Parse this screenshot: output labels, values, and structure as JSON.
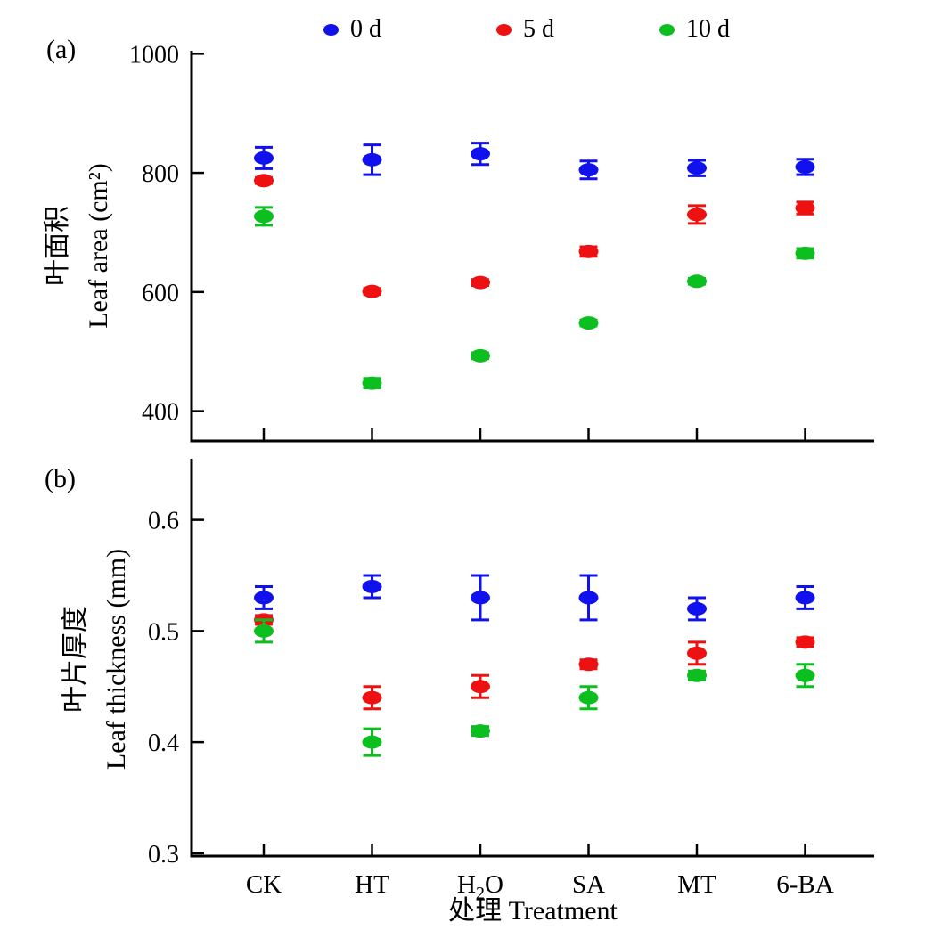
{
  "figure": {
    "legend": [
      {
        "label": "0 d",
        "color": "#1111ee"
      },
      {
        "label": "5 d",
        "color": "#ee1111"
      },
      {
        "label": "10 d",
        "color": "#0bbf1e"
      }
    ],
    "axis_color": "#000000"
  },
  "chart_data": [
    {
      "type": "scatter",
      "panel": "a",
      "panel_label": "(a)",
      "ylabel_zh": "叶面积",
      "ylabel_en": "Leaf area (cm²)",
      "categories": [
        "CK",
        "HT",
        "H₂O",
        "SA",
        "MT",
        "6-BA"
      ],
      "ylim": [
        350,
        1005
      ],
      "yticks": [
        400,
        600,
        800,
        1000
      ],
      "ytick_decimals": 0,
      "grid": false,
      "legend_position": "top",
      "series": [
        {
          "name": "0 d",
          "color": "#1111ee",
          "values": [
            825,
            822,
            832,
            805,
            808,
            810
          ],
          "errors": [
            18,
            25,
            18,
            15,
            13,
            13
          ]
        },
        {
          "name": "5 d",
          "color": "#ee1111",
          "values": [
            787,
            601,
            616,
            668,
            730,
            741
          ],
          "errors": [
            5,
            5,
            5,
            8,
            15,
            10
          ]
        },
        {
          "name": "10 d",
          "color": "#0bbf1e",
          "values": [
            727,
            447,
            493,
            548,
            618,
            665
          ],
          "errors": [
            15,
            8,
            5,
            5,
            5,
            8
          ]
        }
      ]
    },
    {
      "type": "scatter",
      "panel": "b",
      "panel_label": "(b)",
      "ylabel_zh": "叶片厚度",
      "ylabel_en": "Leaf thickness (mm)",
      "xlabel": "处理 Treatment",
      "categories": [
        "CK",
        "HT",
        "H₂O",
        "SA",
        "MT",
        "6-BA"
      ],
      "ylim": [
        0.2975,
        0.655
      ],
      "yticks": [
        0.3,
        0.4,
        0.5,
        0.6
      ],
      "ytick_decimals": 1,
      "grid": false,
      "series": [
        {
          "name": "0 d",
          "color": "#1111ee",
          "values": [
            0.53,
            0.54,
            0.53,
            0.53,
            0.52,
            0.53
          ],
          "errors": [
            0.01,
            0.01,
            0.02,
            0.02,
            0.01,
            0.01
          ]
        },
        {
          "name": "5 d",
          "color": "#ee1111",
          "values": [
            0.51,
            0.44,
            0.45,
            0.47,
            0.48,
            0.49
          ],
          "errors": [
            0.004,
            0.01,
            0.01,
            0.004,
            0.01,
            0.004
          ]
        },
        {
          "name": "10 d",
          "color": "#0bbf1e",
          "values": [
            0.5,
            0.4,
            0.41,
            0.44,
            0.46,
            0.46
          ],
          "errors": [
            0.01,
            0.012,
            0.004,
            0.01,
            0.004,
            0.01
          ]
        }
      ]
    }
  ]
}
